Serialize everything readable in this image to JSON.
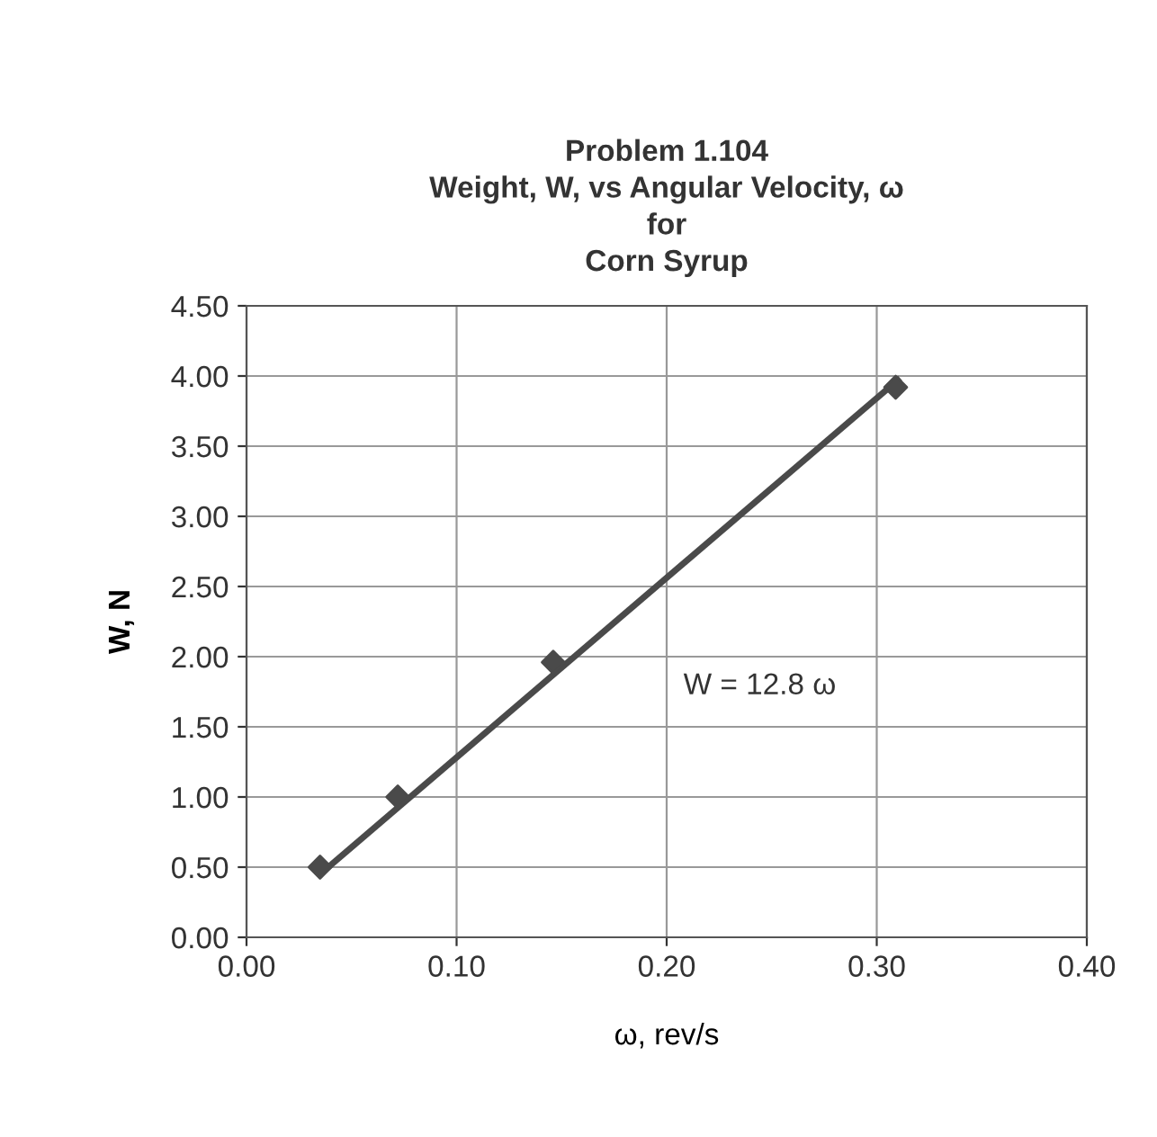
{
  "chart_data": {
    "type": "scatter",
    "title": "Problem 1.104\nWeight, W, vs Angular Velocity, ω\nfor\nCorn Syrup",
    "xlabel": "ω, rev/s",
    "ylabel": "W, N",
    "x": [
      0.035,
      0.072,
      0.146,
      0.309
    ],
    "series": [
      {
        "color": "#4a4a4a",
        "marker": "diamond",
        "values": [
          0.5,
          1.0,
          1.96,
          3.92
        ]
      },
      {
        "type": "line",
        "color": "#4a4a4a",
        "marker": "none",
        "x": [
          0.035,
          0.31
        ],
        "values": [
          0.45,
          3.97
        ]
      }
    ],
    "xlim": [
      0,
      0.4
    ],
    "xticks": [
      {
        "value": 0,
        "label": "0.00"
      },
      {
        "value": 0.1,
        "label": "0.10"
      },
      {
        "value": 0.2,
        "label": "0.20"
      },
      {
        "value": 0.3,
        "label": "0.30"
      },
      {
        "value": 0.4,
        "label": "0.40"
      }
    ],
    "ylim": [
      0,
      4.5
    ],
    "yticks": [
      {
        "value": 0,
        "label": "0.00"
      },
      {
        "value": 0.5,
        "label": "0.50"
      },
      {
        "value": 1,
        "label": "1.00"
      },
      {
        "value": 1.5,
        "label": "1.50"
      },
      {
        "value": 2,
        "label": "2.00"
      },
      {
        "value": 2.5,
        "label": "2.50"
      },
      {
        "value": 3,
        "label": "3.00"
      },
      {
        "value": 3.5,
        "label": "3.50"
      },
      {
        "value": 4,
        "label": "4.00"
      },
      {
        "value": 4.5,
        "label": "4.50"
      }
    ],
    "grid": true,
    "annotations": [
      "W = 12.8 ω"
    ]
  }
}
